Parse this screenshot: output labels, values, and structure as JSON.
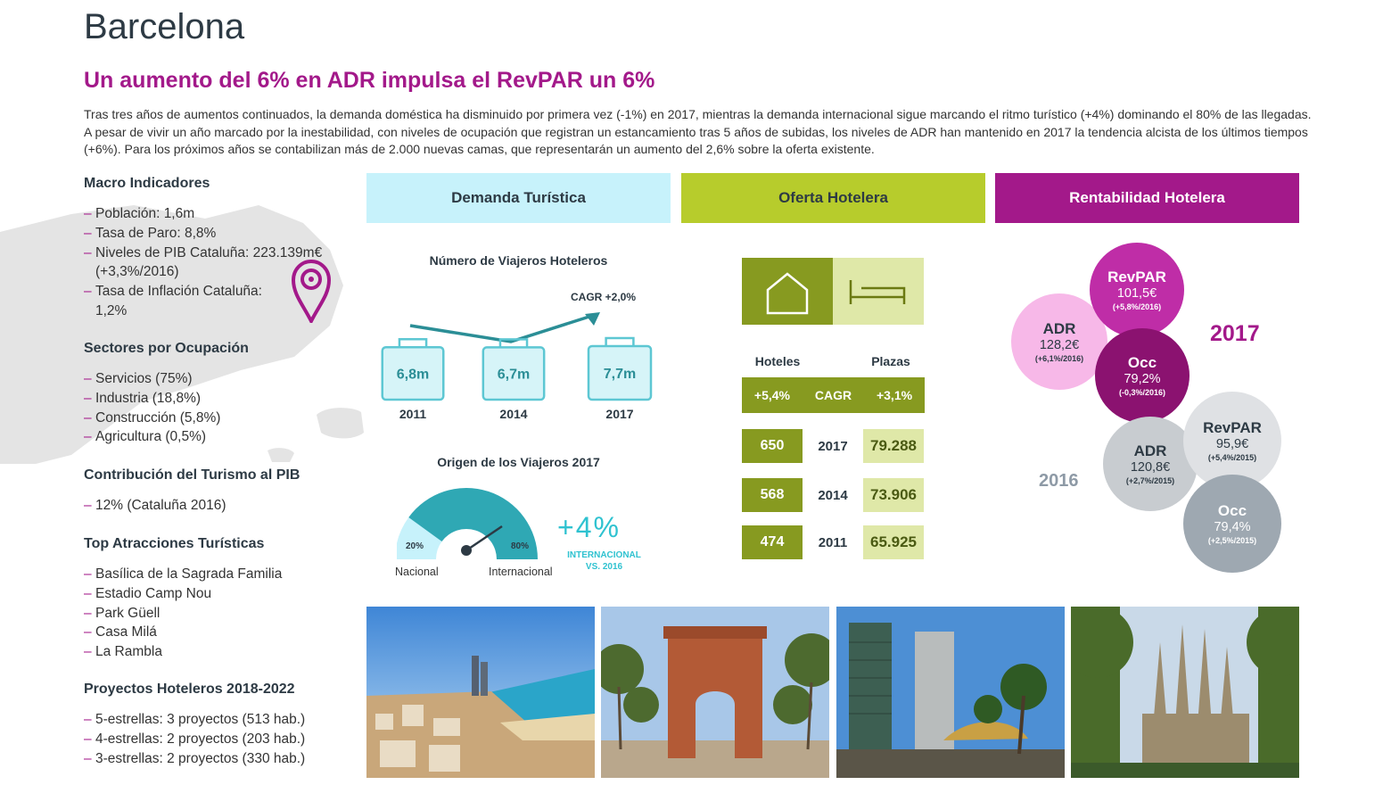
{
  "header": {
    "city": "Barcelona",
    "headline": "Un aumento del 6% en ADR impulsa el RevPAR un 6%",
    "intro": "Tras tres años de aumentos continuados, la demanda doméstica ha disminuido por primera vez (-1%) en 2017, mientras la demanda internacional sigue marcando el ritmo turístico (+4%) dominando el 80% de las llegadas. A pesar de vivir un año marcado por la inestabilidad, con niveles de ocupación que registran un estancamiento tras 5 años de subidas, los niveles de ADR han mantenido en 2017 la tendencia alcista de los últimos tiempos (+6%). Para los próximos años se contabilizan más de 2.000 nuevas camas, que representarán un aumento del 2,6% sobre la oferta existente."
  },
  "left": {
    "macro": {
      "title": "Macro Indicadores",
      "items": [
        "Población: 1,6m",
        "Tasa de Paro: 8,8%",
        "Niveles de PIB Cataluña: 223.139m€",
        "(+3,3%/2016)",
        "Tasa de Inflación Cataluña:",
        "1,2%"
      ]
    },
    "sectores": {
      "title": "Sectores por Ocupación",
      "items": [
        "Servicios (75%)",
        "Industria (18,8%)",
        "Construcción (5,8%)",
        "Agricultura (0,5%)"
      ]
    },
    "contribucion": {
      "title": "Contribución del Turismo al PIB",
      "items": [
        "12% (Cataluña 2016)"
      ]
    },
    "atracciones": {
      "title": "Top Atracciones Turísticas",
      "items": [
        "Basílica de la Sagrada Familia",
        "Estadio Camp Nou",
        "Park Güell",
        "Casa Milá",
        "La Rambla"
      ]
    },
    "proyectos": {
      "title": "Proyectos Hoteleros 2018-2022",
      "items": [
        "5-estrellas: 3 proyectos (513 hab.)",
        "4-estrellas: 2 proyectos (203 hab.)",
        "3-estrellas: 2 proyectos (330 hab.)"
      ]
    },
    "dash": "–"
  },
  "demanda": {
    "header": "Demanda Turística",
    "viajeros_title": "Número de Viajeros Hoteleros",
    "cagr": "CAGR +2,0%",
    "viajeros": [
      {
        "year": "2011",
        "label": "6,8m",
        "value": 6.8
      },
      {
        "year": "2014",
        "label": "6,7m",
        "value": 6.7
      },
      {
        "year": "2017",
        "label": "7,7m",
        "value": 7.7
      }
    ],
    "origen_title": "Origen de los Viajeros 2017",
    "nacional_pct": "20%",
    "internacional_pct": "80%",
    "nacional_label": "Nacional",
    "internacional_label": "Internacional",
    "internacional_share": 0.8,
    "growth": "+4%",
    "growth_caption_1": "INTERNACIONAL",
    "growth_caption_2": "VS. 2016"
  },
  "oferta": {
    "header": "Oferta Hotelera",
    "col_hoteles": "Hoteles",
    "col_plazas": "Plazas",
    "cagr_hoteles": "+5,4%",
    "cagr_label": "CAGR",
    "cagr_plazas": "+3,1%",
    "rows": [
      {
        "hoteles": "650",
        "year": "2017",
        "plazas": "79.288"
      },
      {
        "hoteles": "568",
        "year": "2014",
        "plazas": "73.906"
      },
      {
        "hoteles": "474",
        "year": "2011",
        "plazas": "65.925"
      }
    ]
  },
  "rentabilidad": {
    "header": "Rentabilidad Hotelera",
    "year_2017": "2017",
    "year_2016": "2016",
    "c2017": {
      "revpar": {
        "t": "RevPAR",
        "v": "101,5€",
        "c": "(+5,8%/2016)"
      },
      "adr": {
        "t": "ADR",
        "v": "128,2€",
        "c": "(+6,1%/2016)"
      },
      "occ": {
        "t": "Occ",
        "v": "79,2%",
        "c": "(-0,3%/2016)"
      }
    },
    "c2016": {
      "revpar": {
        "t": "RevPAR",
        "v": "95,9€",
        "c": "(+5,4%/2015)"
      },
      "adr": {
        "t": "ADR",
        "v": "120,8€",
        "c": "(+2,7%/2015)"
      },
      "occ": {
        "t": "Occ",
        "v": "79,4%",
        "c": "(+2,5%/2015)"
      }
    }
  },
  "colors": {
    "magenta": "#a3198a",
    "teal": "#2b8e96",
    "olive": "#879a20",
    "lime": "#b7cc2c",
    "cyan_light": "#c7f2fb",
    "pink_light": "#f7b8e8",
    "grey_circle": "#c8ccd0"
  }
}
